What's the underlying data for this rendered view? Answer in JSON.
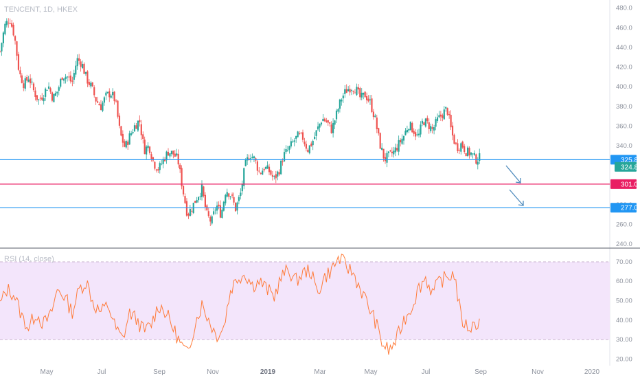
{
  "symbol_label": "TENCENT, 1D, HKEX",
  "rsi_label": "RSI (14, close)",
  "colors": {
    "up": "#26a69a",
    "down": "#ef5350",
    "blue_line": "#2196f3",
    "red_line": "#e91e63",
    "rsi_line": "#ff7b39",
    "rsi_band": "#f3e5fb",
    "rsi_band_border": "#c9b2cf",
    "arrow": "#4f8bbd"
  },
  "chart_data": [
    {
      "type": "candlestick",
      "name": "price",
      "ylim": [
        238,
        484
      ],
      "y_ticks": [
        240,
        260,
        280,
        300,
        320,
        340,
        360,
        380,
        400,
        420,
        440,
        460,
        480
      ],
      "x_ticks": [
        "May",
        "Jul",
        "Sep",
        "Nov",
        "2019",
        "Mar",
        "May",
        "Jul",
        "Sep",
        "Nov",
        "2020"
      ],
      "x_tick_bold": "2019",
      "close_path": [
        [
          0,
          436
        ],
        [
          2,
          462
        ],
        [
          4,
          470
        ],
        [
          6,
          452
        ],
        [
          8,
          414
        ],
        [
          10,
          402
        ],
        [
          12,
          410
        ],
        [
          14,
          396
        ],
        [
          16,
          386
        ],
        [
          18,
          392
        ],
        [
          20,
          402
        ],
        [
          22,
          388
        ],
        [
          24,
          396
        ],
        [
          26,
          412
        ],
        [
          28,
          410
        ],
        [
          30,
          404
        ],
        [
          32,
          428
        ],
        [
          34,
          424
        ],
        [
          36,
          408
        ],
        [
          38,
          400
        ],
        [
          40,
          386
        ],
        [
          42,
          380
        ],
        [
          44,
          390
        ],
        [
          46,
          394
        ],
        [
          48,
          386
        ],
        [
          50,
          352
        ],
        [
          52,
          338
        ],
        [
          54,
          350
        ],
        [
          56,
          360
        ],
        [
          58,
          366
        ],
        [
          60,
          336
        ],
        [
          62,
          340
        ],
        [
          64,
          322
        ],
        [
          66,
          316
        ],
        [
          68,
          326
        ],
        [
          70,
          334
        ],
        [
          72,
          332
        ],
        [
          74,
          326
        ],
        [
          76,
          296
        ],
        [
          78,
          270
        ],
        [
          80,
          278
        ],
        [
          82,
          288
        ],
        [
          84,
          296
        ],
        [
          86,
          270
        ],
        [
          88,
          262
        ],
        [
          90,
          280
        ],
        [
          92,
          270
        ],
        [
          94,
          296
        ],
        [
          96,
          290
        ],
        [
          98,
          276
        ],
        [
          100,
          290
        ],
        [
          102,
          320
        ],
        [
          104,
          332
        ],
        [
          106,
          326
        ],
        [
          108,
          312
        ],
        [
          110,
          318
        ],
        [
          112,
          314
        ],
        [
          114,
          306
        ],
        [
          116,
          314
        ],
        [
          118,
          330
        ],
        [
          120,
          336
        ],
        [
          122,
          344
        ],
        [
          124,
          350
        ],
        [
          126,
          348
        ],
        [
          128,
          336
        ],
        [
          130,
          344
        ],
        [
          132,
          356
        ],
        [
          134,
          368
        ],
        [
          136,
          364
        ],
        [
          138,
          356
        ],
        [
          140,
          372
        ],
        [
          142,
          388
        ],
        [
          144,
          396
        ],
        [
          146,
          400
        ],
        [
          148,
          398
        ],
        [
          150,
          388
        ],
        [
          152,
          392
        ],
        [
          154,
          384
        ],
        [
          156,
          368
        ],
        [
          158,
          342
        ],
        [
          160,
          326
        ],
        [
          162,
          330
        ],
        [
          164,
          334
        ],
        [
          166,
          342
        ],
        [
          168,
          350
        ],
        [
          170,
          362
        ],
        [
          172,
          356
        ],
        [
          174,
          348
        ],
        [
          176,
          366
        ],
        [
          178,
          362
        ],
        [
          180,
          356
        ],
        [
          182,
          366
        ],
        [
          184,
          372
        ],
        [
          186,
          378
        ],
        [
          188,
          352
        ],
        [
          190,
          338
        ],
        [
          192,
          342
        ],
        [
          194,
          334
        ],
        [
          196,
          332
        ],
        [
          198,
          326
        ],
        [
          200,
          328
        ]
      ],
      "horizontal_lines": [
        {
          "value": 325.8,
          "label": "325.8",
          "color": "blue"
        },
        {
          "value": 301.0,
          "label": "301.0",
          "color": "red"
        },
        {
          "value": 277.0,
          "label": "277.0",
          "color": "blue"
        }
      ],
      "last_price": {
        "value": 324.8,
        "label": "324.8"
      }
    },
    {
      "type": "line",
      "name": "RSI (14, close)",
      "ylim": [
        18,
        76
      ],
      "y_ticks": [
        20,
        30,
        40,
        50,
        60,
        70
      ],
      "y_tick_labels": [
        "20.00",
        "30.00",
        "40.00",
        "50.00",
        "60.00",
        "70.00"
      ],
      "band": [
        30,
        70
      ],
      "values_path": [
        [
          0,
          48
        ],
        [
          3,
          56
        ],
        [
          6,
          53
        ],
        [
          9,
          42
        ],
        [
          12,
          36
        ],
        [
          15,
          44
        ],
        [
          18,
          38
        ],
        [
          21,
          42
        ],
        [
          24,
          56
        ],
        [
          27,
          52
        ],
        [
          30,
          44
        ],
        [
          33,
          56
        ],
        [
          36,
          60
        ],
        [
          39,
          48
        ],
        [
          42,
          44
        ],
        [
          45,
          48
        ],
        [
          48,
          36
        ],
        [
          51,
          30
        ],
        [
          54,
          44
        ],
        [
          57,
          40
        ],
        [
          60,
          34
        ],
        [
          63,
          38
        ],
        [
          66,
          48
        ],
        [
          69,
          44
        ],
        [
          72,
          36
        ],
        [
          75,
          28
        ],
        [
          78,
          22
        ],
        [
          81,
          38
        ],
        [
          84,
          48
        ],
        [
          87,
          40
        ],
        [
          90,
          32
        ],
        [
          93,
          36
        ],
        [
          96,
          56
        ],
        [
          99,
          62
        ],
        [
          102,
          64
        ],
        [
          105,
          58
        ],
        [
          108,
          60
        ],
        [
          111,
          56
        ],
        [
          114,
          52
        ],
        [
          117,
          62
        ],
        [
          120,
          66
        ],
        [
          123,
          60
        ],
        [
          126,
          64
        ],
        [
          129,
          66
        ],
        [
          132,
          54
        ],
        [
          135,
          62
        ],
        [
          138,
          66
        ],
        [
          141,
          72
        ],
        [
          144,
          68
        ],
        [
          147,
          64
        ],
        [
          150,
          56
        ],
        [
          153,
          48
        ],
        [
          156,
          40
        ],
        [
          159,
          28
        ],
        [
          162,
          24
        ],
        [
          165,
          30
        ],
        [
          168,
          40
        ],
        [
          171,
          46
        ],
        [
          174,
          56
        ],
        [
          177,
          62
        ],
        [
          180,
          54
        ],
        [
          183,
          60
        ],
        [
          186,
          62
        ],
        [
          189,
          64
        ],
        [
          192,
          40
        ],
        [
          195,
          36
        ],
        [
          198,
          38
        ],
        [
          200,
          40
        ]
      ]
    }
  ]
}
